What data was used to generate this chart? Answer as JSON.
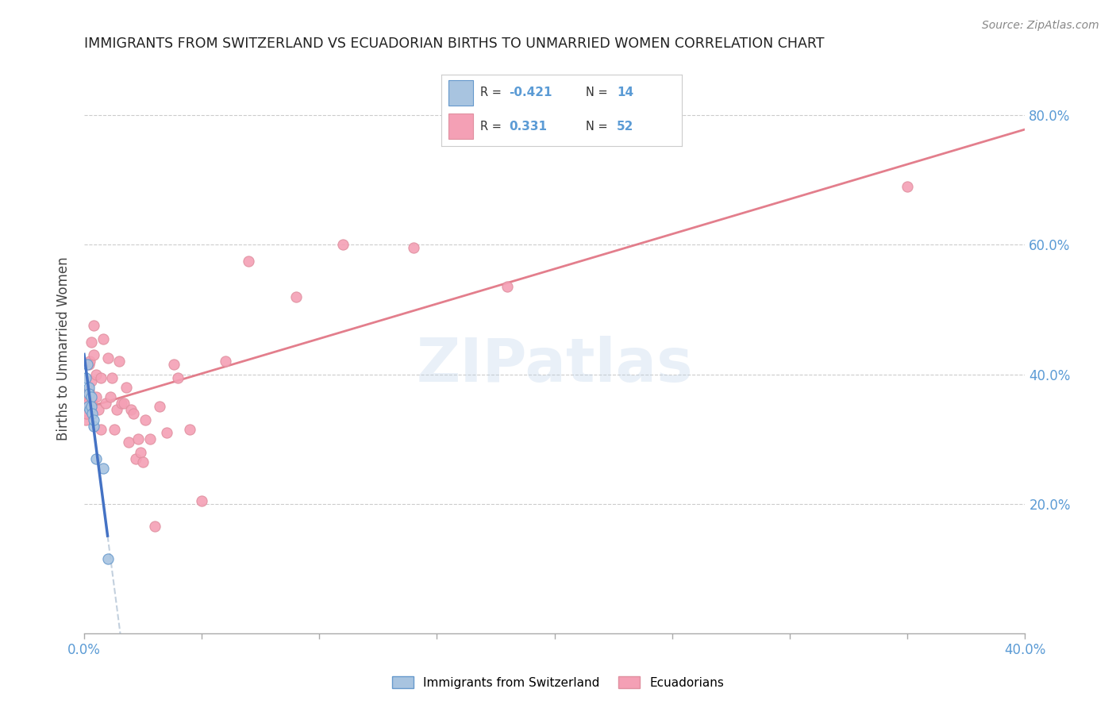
{
  "title": "IMMIGRANTS FROM SWITZERLAND VS ECUADORIAN BIRTHS TO UNMARRIED WOMEN CORRELATION CHART",
  "source": "Source: ZipAtlas.com",
  "ylabel": "Births to Unmarried Women",
  "right_yticks": [
    "20.0%",
    "40.0%",
    "60.0%",
    "80.0%"
  ],
  "right_ytick_vals": [
    0.2,
    0.4,
    0.6,
    0.8
  ],
  "color_swiss": "#a8c4e0",
  "color_ecuador": "#f4a0b5",
  "color_swiss_line": "#4472c4",
  "color_ecuador_line": "#e07080",
  "color_swiss_dark": "#6699cc",
  "color_ecuador_dark": "#e090a0",
  "watermark": "ZIPatlas",
  "swiss_x": [
    0.0008,
    0.0015,
    0.0018,
    0.002,
    0.002,
    0.0025,
    0.003,
    0.003,
    0.0035,
    0.004,
    0.004,
    0.005,
    0.008,
    0.01
  ],
  "swiss_y": [
    0.395,
    0.415,
    0.35,
    0.38,
    0.37,
    0.345,
    0.365,
    0.35,
    0.34,
    0.32,
    0.33,
    0.27,
    0.255,
    0.115
  ],
  "ecuador_x": [
    0.0008,
    0.001,
    0.0012,
    0.0015,
    0.0018,
    0.002,
    0.002,
    0.0025,
    0.003,
    0.003,
    0.0035,
    0.004,
    0.004,
    0.005,
    0.005,
    0.006,
    0.007,
    0.007,
    0.008,
    0.009,
    0.01,
    0.011,
    0.012,
    0.013,
    0.014,
    0.015,
    0.016,
    0.017,
    0.018,
    0.019,
    0.02,
    0.021,
    0.022,
    0.023,
    0.024,
    0.025,
    0.026,
    0.028,
    0.03,
    0.032,
    0.035,
    0.038,
    0.04,
    0.045,
    0.05,
    0.06,
    0.07,
    0.09,
    0.11,
    0.14,
    0.18,
    0.35
  ],
  "ecuador_y": [
    0.33,
    0.36,
    0.34,
    0.37,
    0.355,
    0.375,
    0.415,
    0.42,
    0.39,
    0.45,
    0.36,
    0.43,
    0.475,
    0.365,
    0.4,
    0.345,
    0.395,
    0.315,
    0.455,
    0.355,
    0.425,
    0.365,
    0.395,
    0.315,
    0.345,
    0.42,
    0.355,
    0.355,
    0.38,
    0.295,
    0.345,
    0.34,
    0.27,
    0.3,
    0.28,
    0.265,
    0.33,
    0.3,
    0.165,
    0.35,
    0.31,
    0.415,
    0.395,
    0.315,
    0.205,
    0.42,
    0.575,
    0.52,
    0.6,
    0.595,
    0.535,
    0.69
  ],
  "xlim": [
    0.0,
    0.4
  ],
  "ylim": [
    0.0,
    0.88
  ],
  "xtick_vals": [
    0.0,
    0.05,
    0.1,
    0.15,
    0.2,
    0.25,
    0.3,
    0.35,
    0.4
  ]
}
